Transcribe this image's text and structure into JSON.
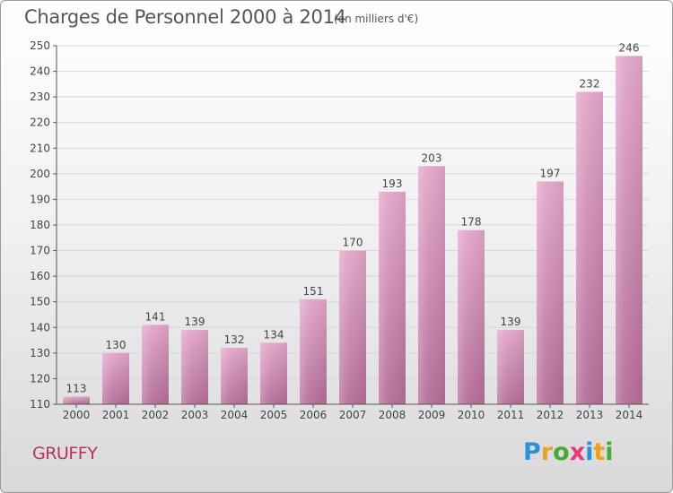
{
  "header": {
    "title": "Charges de Personnel 2000 à 2014",
    "subtitle": "(en milliers d'€)"
  },
  "footer": {
    "commune": "GRUFFY",
    "brand": "Proxiti",
    "brand_letters": [
      {
        "ch": "P",
        "color": "#2f8fd8"
      },
      {
        "ch": "r",
        "color": "#f0a020"
      },
      {
        "ch": "o",
        "color": "#4aa838"
      },
      {
        "ch": "x",
        "color": "#e83878"
      },
      {
        "ch": "i",
        "color": "#2f8fd8"
      },
      {
        "ch": "t",
        "color": "#f0a020"
      },
      {
        "ch": "i",
        "color": "#4aa838"
      }
    ]
  },
  "colors": {
    "bar_top": "#e3a6ca",
    "bar_bottom": "#b46d98",
    "axis": "#555555",
    "grid": "#d6d6d6"
  },
  "chart_data": {
    "type": "bar",
    "categories": [
      "2000",
      "2001",
      "2002",
      "2003",
      "2004",
      "2005",
      "2006",
      "2007",
      "2008",
      "2009",
      "2010",
      "2011",
      "2012",
      "2013",
      "2014"
    ],
    "values": [
      113,
      130,
      141,
      139,
      132,
      134,
      151,
      170,
      193,
      203,
      178,
      139,
      197,
      232,
      246
    ],
    "ylim": [
      110,
      250
    ],
    "yticks": [
      110,
      120,
      130,
      140,
      150,
      160,
      170,
      180,
      190,
      200,
      210,
      220,
      230,
      240,
      250
    ],
    "grid": true
  }
}
